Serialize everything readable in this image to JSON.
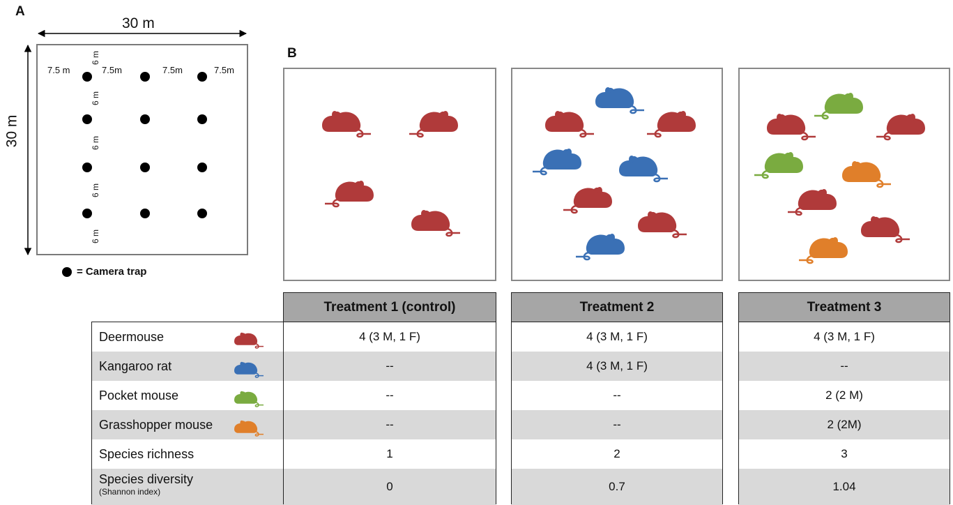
{
  "panel_a": {
    "label": "A",
    "width_label": "30 m",
    "height_label": "30 m",
    "horizontal_spacings": [
      "7.5 m",
      "7.5m",
      "7.5m",
      "7.5m"
    ],
    "vertical_spacings": [
      "6 m",
      "6 m",
      "6 m",
      "6 m",
      "6 m"
    ],
    "legend_text": "= Camera trap",
    "grid": {
      "rows": 4,
      "cols": 3
    }
  },
  "panel_b": {
    "label": "B",
    "enclosures": [
      {
        "name": "Treatment 1 (control)",
        "mice": [
          {
            "species": "deermouse",
            "facing": "left"
          },
          {
            "species": "deermouse",
            "facing": "right"
          },
          {
            "species": "deermouse",
            "facing": "right"
          },
          {
            "species": "deermouse",
            "facing": "left"
          }
        ]
      },
      {
        "name": "Treatment 2",
        "mice": [
          {
            "species": "kangaroo-rat",
            "facing": "left"
          },
          {
            "species": "deermouse",
            "facing": "left"
          },
          {
            "species": "deermouse",
            "facing": "right"
          },
          {
            "species": "kangaroo-rat",
            "facing": "right"
          },
          {
            "species": "kangaroo-rat",
            "facing": "left"
          },
          {
            "species": "deermouse",
            "facing": "right"
          },
          {
            "species": "deermouse",
            "facing": "left"
          },
          {
            "species": "kangaroo-rat",
            "facing": "right"
          }
        ]
      },
      {
        "name": "Treatment 3",
        "mice": [
          {
            "species": "pocket-mouse",
            "facing": "right"
          },
          {
            "species": "deermouse",
            "facing": "left"
          },
          {
            "species": "deermouse",
            "facing": "right"
          },
          {
            "species": "pocket-mouse",
            "facing": "right"
          },
          {
            "species": "grasshopper-mouse",
            "facing": "left"
          },
          {
            "species": "deermouse",
            "facing": "right"
          },
          {
            "species": "deermouse",
            "facing": "left"
          },
          {
            "species": "grasshopper-mouse",
            "facing": "right"
          }
        ]
      }
    ]
  },
  "species_colors": {
    "deermouse": "#b03a3a",
    "kangaroo-rat": "#3a70b5",
    "pocket-mouse": "#7aab40",
    "grasshopper-mouse": "#e07f2a"
  },
  "table": {
    "headers": [
      "Treatment 1 (control)",
      "Treatment 2",
      "Treatment 3"
    ],
    "rows": [
      {
        "label": "Deermouse",
        "sublabel": "",
        "icon": "deermouse",
        "values": [
          "4 (3 M, 1 F)",
          "4 (3 M, 1 F)",
          "4 (3 M, 1 F)"
        ]
      },
      {
        "label": "Kangaroo rat",
        "sublabel": "",
        "icon": "kangaroo-rat",
        "values": [
          "--",
          "4 (3 M, 1 F)",
          "--"
        ]
      },
      {
        "label": "Pocket mouse",
        "sublabel": "",
        "icon": "pocket-mouse",
        "values": [
          "--",
          "--",
          "2 (2 M)"
        ]
      },
      {
        "label": "Grasshopper mouse",
        "sublabel": "",
        "icon": "grasshopper-mouse",
        "values": [
          "--",
          "--",
          "2 (2M)"
        ]
      },
      {
        "label": "Species richness",
        "sublabel": "",
        "icon": "",
        "values": [
          "1",
          "2",
          "3"
        ]
      },
      {
        "label": "Species diversity",
        "sublabel": "(Shannon index)",
        "icon": "",
        "values": [
          "0",
          "0.7",
          "1.04"
        ]
      }
    ]
  }
}
